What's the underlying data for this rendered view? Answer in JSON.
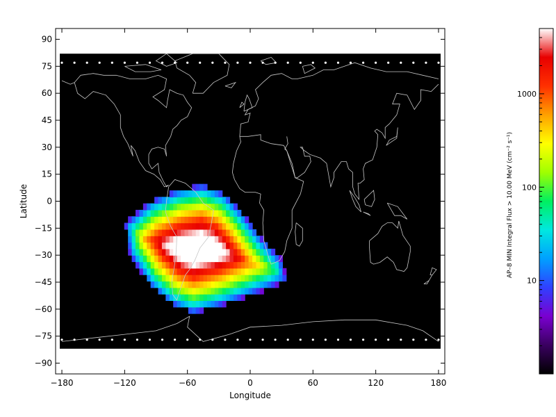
{
  "chart_data": {
    "type": "heatmap",
    "title": "",
    "xlabel": "Longitude",
    "ylabel": "Latitude",
    "xlim": [
      -186,
      186
    ],
    "ylim": [
      -96,
      96
    ],
    "x_ticks": [
      -180,
      -120,
      -60,
      0,
      60,
      120,
      180
    ],
    "y_ticks": [
      90,
      75,
      60,
      45,
      30,
      15,
      0,
      -15,
      -30,
      -45,
      -60,
      -75,
      -90
    ],
    "x_tick_labels": [
      "−180",
      "−120",
      "−60",
      "0",
      "60",
      "120",
      "180"
    ],
    "y_tick_labels": [
      "90",
      "75",
      "60",
      "45",
      "30",
      "15",
      "0",
      "−15",
      "−30",
      "−45",
      "−60",
      "−75",
      "−90"
    ],
    "data_lat_range": [
      -82,
      82
    ],
    "background_value_color": "#000000",
    "anomaly": {
      "name": "South Atlantic Anomaly",
      "center_lon": -50,
      "center_lat": -28,
      "peak_flux": 5000,
      "outline": [
        [
          -120,
          -12
        ],
        [
          -95,
          0
        ],
        [
          -70,
          6
        ],
        [
          -45,
          9
        ],
        [
          -25,
          4
        ],
        [
          -10,
          -5
        ],
        [
          10,
          -20
        ],
        [
          30,
          -32
        ],
        [
          35,
          -44
        ],
        [
          20,
          -48
        ],
        [
          0,
          -52
        ],
        [
          -25,
          -57
        ],
        [
          -55,
          -62
        ],
        [
          -75,
          -57
        ],
        [
          -95,
          -47
        ],
        [
          -115,
          -30
        ]
      ]
    },
    "colorbar": {
      "label": "AP–8 MIN Integral Flux > 10.00 MeV (cm⁻² s⁻¹)",
      "scale": "log",
      "range": [
        1,
        5000
      ],
      "ticks": [
        10,
        100,
        1000
      ],
      "tick_labels": [
        "10",
        "100",
        "1000"
      ],
      "colors": [
        "#000000",
        "#3a0060",
        "#7a00d0",
        "#3040ff",
        "#00a0ff",
        "#00e8e0",
        "#00f060",
        "#a0ff00",
        "#ffff00",
        "#ffa000",
        "#ff3000",
        "#e80000",
        "#ffffff"
      ]
    }
  }
}
